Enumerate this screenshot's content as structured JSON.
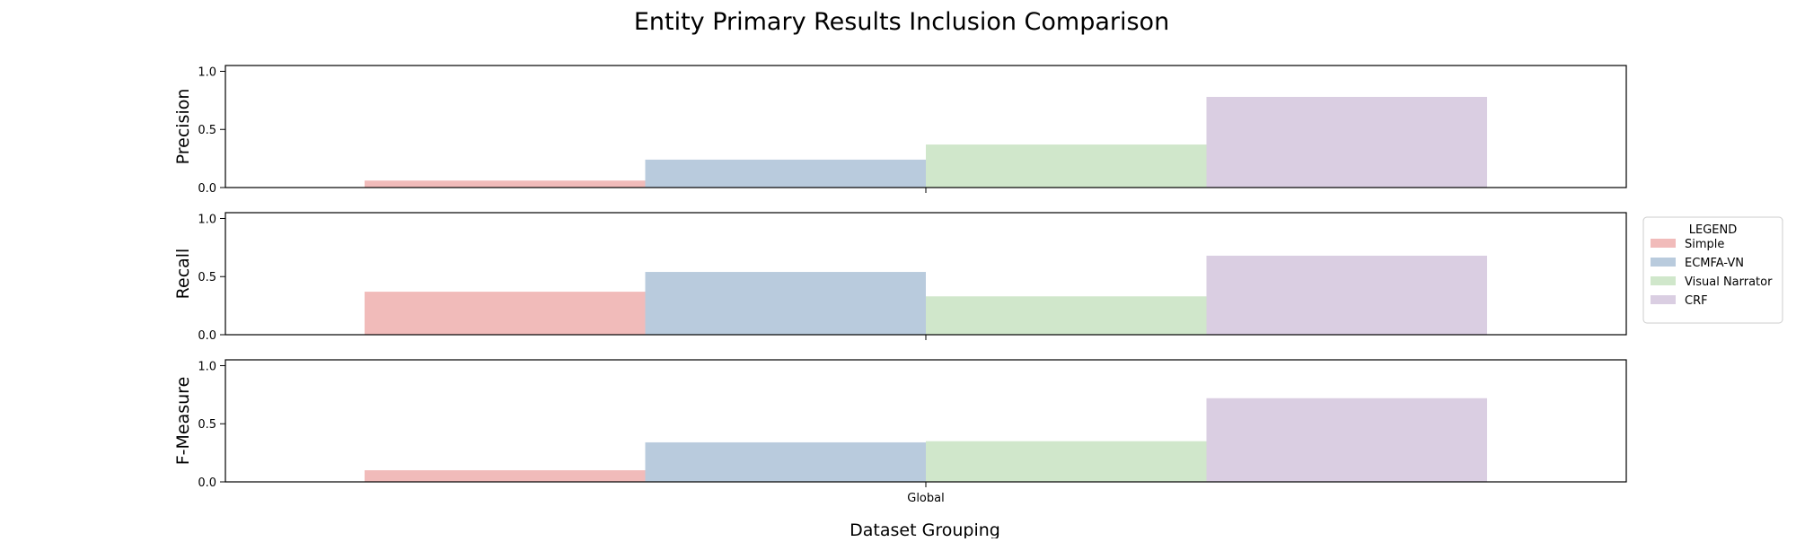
{
  "chart_data": {
    "type": "bar",
    "title": "Entity Primary Results Inclusion Comparison",
    "xlabel": "Dataset Grouping",
    "categories": [
      "Global"
    ],
    "ylim": [
      0,
      1.05
    ],
    "yticks": [
      "0.0",
      "0.5",
      "1.0"
    ],
    "grid": false,
    "legend": {
      "title": "LEGEND",
      "placement": "right",
      "entries": [
        "Simple",
        "ECMFA-VN",
        "Visual Narrator",
        "CRF"
      ]
    },
    "colors": {
      "Simple": "#f1bbba",
      "ECMFA-VN": "#b9cbdd",
      "Visual Narrator": "#d0e7cb",
      "CRF": "#dacee2"
    },
    "panels": [
      {
        "ylabel": "Precision",
        "series": [
          {
            "name": "Simple",
            "values": [
              0.06
            ]
          },
          {
            "name": "ECMFA-VN",
            "values": [
              0.24
            ]
          },
          {
            "name": "Visual Narrator",
            "values": [
              0.37
            ]
          },
          {
            "name": "CRF",
            "values": [
              0.78
            ]
          }
        ]
      },
      {
        "ylabel": "Recall",
        "series": [
          {
            "name": "Simple",
            "values": [
              0.37
            ]
          },
          {
            "name": "ECMFA-VN",
            "values": [
              0.54
            ]
          },
          {
            "name": "Visual Narrator",
            "values": [
              0.33
            ]
          },
          {
            "name": "CRF",
            "values": [
              0.68
            ]
          }
        ]
      },
      {
        "ylabel": "F-Measure",
        "series": [
          {
            "name": "Simple",
            "values": [
              0.1
            ]
          },
          {
            "name": "ECMFA-VN",
            "values": [
              0.34
            ]
          },
          {
            "name": "Visual Narrator",
            "values": [
              0.35
            ]
          },
          {
            "name": "CRF",
            "values": [
              0.72
            ]
          }
        ]
      }
    ]
  }
}
